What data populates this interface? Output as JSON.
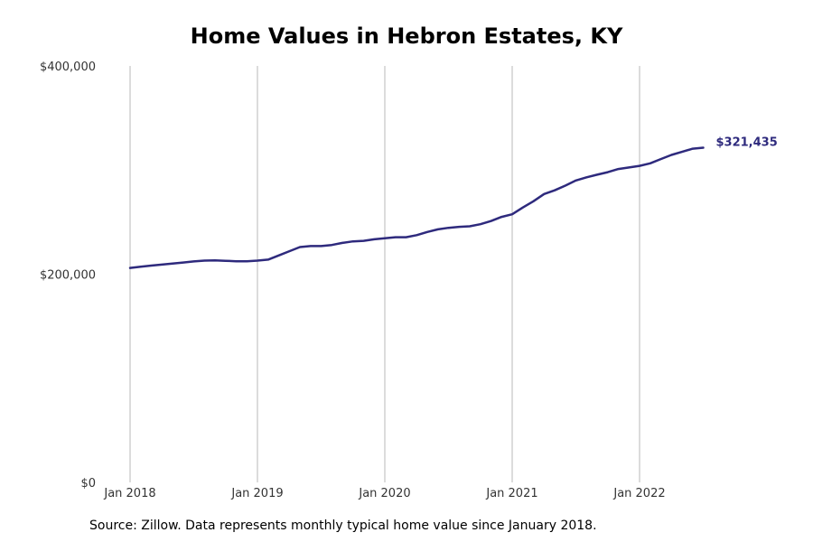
{
  "chart_data": {
    "type": "line",
    "title": "Home Values in Hebron Estates, KY",
    "source_note": "Source: Zillow. Data represents monthly typical home value since January 2018.",
    "xlabel": "",
    "ylabel": "",
    "x_ticks": [
      "Jan 2018",
      "Jan 2019",
      "Jan 2020",
      "Jan 2021",
      "Jan 2022"
    ],
    "y_ticks": [
      "$0",
      "$200,000",
      "$400,000"
    ],
    "ylim": [
      0,
      400000
    ],
    "grid": "vertical",
    "line_color": "#2e2a7d",
    "end_label": "$321,435",
    "series": [
      {
        "x": [
          "2018-01",
          "2018-02",
          "2018-03",
          "2018-04",
          "2018-05",
          "2018-06",
          "2018-07",
          "2018-08",
          "2018-09",
          "2018-10",
          "2018-11",
          "2018-12",
          "2019-01",
          "2019-02",
          "2019-03",
          "2019-04",
          "2019-05",
          "2019-06",
          "2019-07",
          "2019-08",
          "2019-09",
          "2019-10",
          "2019-11",
          "2019-12",
          "2020-01",
          "2020-02",
          "2020-03",
          "2020-04",
          "2020-05",
          "2020-06",
          "2020-07",
          "2020-08",
          "2020-09",
          "2020-10",
          "2020-11",
          "2020-12",
          "2021-01",
          "2021-02",
          "2021-03",
          "2021-04",
          "2021-05",
          "2021-06",
          "2021-07",
          "2021-08",
          "2021-09",
          "2021-10",
          "2021-11",
          "2021-12",
          "2022-01",
          "2022-02",
          "2022-03",
          "2022-04",
          "2022-05",
          "2022-06",
          "2022-07"
        ],
        "values": [
          206000,
          207200,
          208200,
          209200,
          210200,
          211200,
          212200,
          213000,
          213200,
          212800,
          212400,
          212400,
          213000,
          214000,
          218000,
          222000,
          226000,
          227000,
          227000,
          228000,
          230000,
          231500,
          232000,
          233500,
          234500,
          235500,
          235500,
          237500,
          240500,
          243000,
          244500,
          245500,
          246000,
          248000,
          251000,
          255000,
          257500,
          264000,
          270000,
          277000,
          280500,
          285000,
          290000,
          293000,
          295500,
          298000,
          301000,
          302500,
          304000,
          306500,
          310500,
          314500,
          317500,
          320500,
          321435
        ]
      }
    ]
  }
}
